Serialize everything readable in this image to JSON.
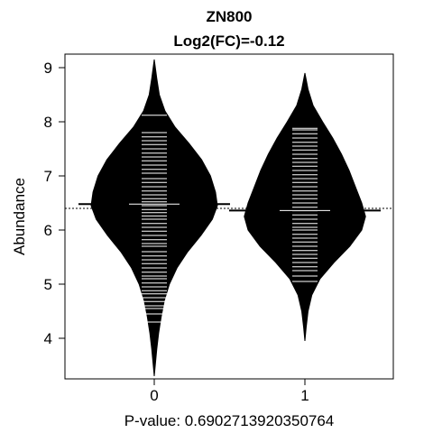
{
  "chart_data": {
    "type": "beanplot",
    "title": "ZN800",
    "subtitle": "Log2(FC)=-0.12",
    "xlabel": "P-value: 0.6902713920350764",
    "ylabel": "Abundance",
    "categories": [
      "0",
      "1"
    ],
    "ylim": [
      3.25,
      9.25
    ],
    "yticks": [
      4,
      5,
      6,
      7,
      8,
      9
    ],
    "overall_mean": 6.4,
    "groups": [
      {
        "name": "0",
        "mean": 6.48,
        "min": 3.3,
        "max": 9.15,
        "density": [
          [
            3.3,
            0.0
          ],
          [
            3.55,
            0.02
          ],
          [
            3.8,
            0.04
          ],
          [
            4.1,
            0.07
          ],
          [
            4.4,
            0.11
          ],
          [
            4.7,
            0.16
          ],
          [
            5.0,
            0.24
          ],
          [
            5.3,
            0.36
          ],
          [
            5.6,
            0.53
          ],
          [
            5.9,
            0.74
          ],
          [
            6.2,
            0.92
          ],
          [
            6.45,
            1.0
          ],
          [
            6.7,
            0.97
          ],
          [
            7.0,
            0.89
          ],
          [
            7.3,
            0.75
          ],
          [
            7.6,
            0.55
          ],
          [
            7.9,
            0.33
          ],
          [
            8.2,
            0.17
          ],
          [
            8.5,
            0.08
          ],
          [
            8.8,
            0.04
          ],
          [
            9.15,
            0.0
          ]
        ],
        "observations": [
          4.3,
          4.45,
          4.55,
          4.6,
          4.68,
          4.75,
          4.82,
          4.88,
          4.95,
          5.02,
          5.1,
          5.15,
          5.22,
          5.3,
          5.38,
          5.45,
          5.52,
          5.6,
          5.7,
          5.75,
          5.82,
          5.9,
          5.98,
          6.05,
          6.12,
          6.2,
          6.26,
          6.32,
          6.38,
          6.45,
          6.52,
          6.58,
          6.65,
          6.72,
          6.8,
          6.88,
          6.95,
          7.05,
          7.12,
          7.2,
          7.28,
          7.35,
          7.42,
          7.5,
          7.58,
          7.65,
          7.72,
          7.8,
          8.12
        ]
      },
      {
        "name": "1",
        "mean": 6.36,
        "min": 3.95,
        "max": 8.9,
        "density": [
          [
            3.95,
            0.0
          ],
          [
            4.2,
            0.02
          ],
          [
            4.5,
            0.05
          ],
          [
            4.8,
            0.11
          ],
          [
            5.1,
            0.24
          ],
          [
            5.4,
            0.46
          ],
          [
            5.7,
            0.71
          ],
          [
            6.0,
            0.9
          ],
          [
            6.25,
            0.96
          ],
          [
            6.5,
            0.9
          ],
          [
            6.8,
            0.8
          ],
          [
            7.1,
            0.7
          ],
          [
            7.4,
            0.58
          ],
          [
            7.7,
            0.44
          ],
          [
            8.0,
            0.28
          ],
          [
            8.3,
            0.13
          ],
          [
            8.6,
            0.05
          ],
          [
            8.9,
            0.0
          ]
        ],
        "observations": [
          5.05,
          5.15,
          5.25,
          5.32,
          5.4,
          5.48,
          5.55,
          5.62,
          5.7,
          5.78,
          5.85,
          5.92,
          6.0,
          6.05,
          6.12,
          6.2,
          6.28,
          6.35,
          6.42,
          6.5,
          6.58,
          6.65,
          6.72,
          6.8,
          6.88,
          6.95,
          7.02,
          7.1,
          7.18,
          7.25,
          7.32,
          7.4,
          7.48,
          7.55,
          7.62,
          7.7,
          7.78,
          7.85,
          7.88
        ]
      }
    ],
    "colors": {
      "bean": "#000000",
      "observation": "#ffffff",
      "background": "#ffffff"
    }
  }
}
